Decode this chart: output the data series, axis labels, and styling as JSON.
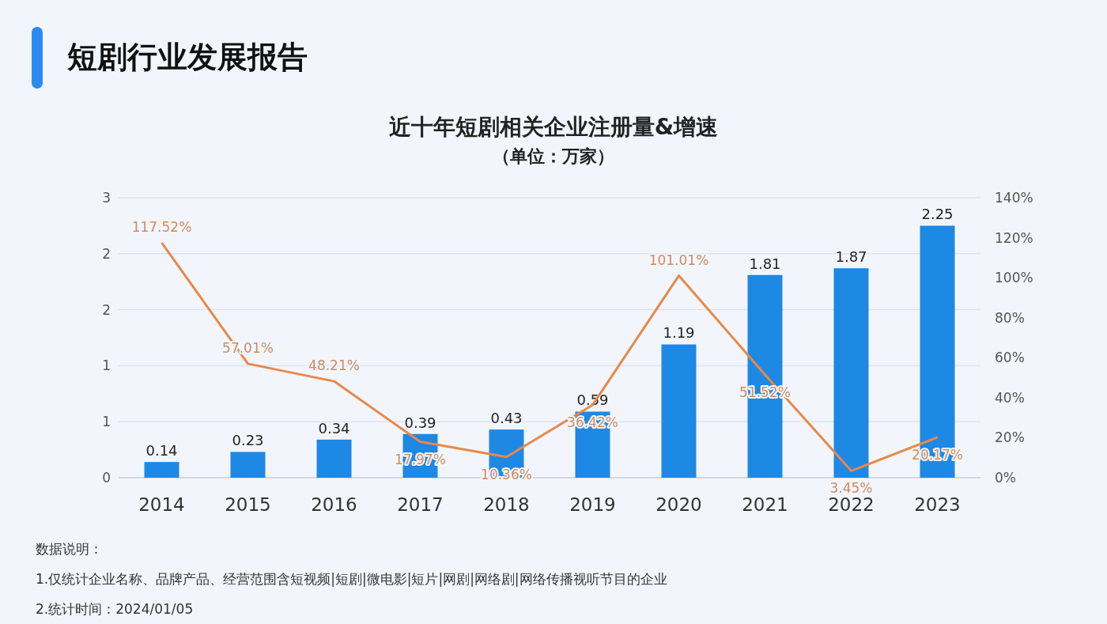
{
  "chart_data": {
    "type": "bar",
    "title": "近十年短剧相关企业注册量&增速",
    "subtitle": "（单位：万家）",
    "annotations": [
      "短剧行业发展报告",
      "数据说明：",
      "1.仅统计企业名称、品牌产品、经营范围含短视频|短剧|微电影|短片|网剧|网络剧|网络传播视听节目的企业",
      "2.统计时间：2024/01/05"
    ],
    "categories": [
      "2014",
      "2015",
      "2016",
      "2017",
      "2018",
      "2019",
      "2020",
      "2021",
      "2022",
      "2023"
    ],
    "series": [
      {
        "color": "#1e88e5",
        "values": [
          0.14,
          0.23,
          0.34,
          0.39,
          0.43,
          0.59,
          1.19,
          1.81,
          1.87,
          2.25
        ],
        "value_labels": [
          "0.14",
          "0.23",
          "0.34",
          "0.39",
          "0.43",
          "0.59",
          "1.19",
          "1.81",
          "1.87",
          "2.25"
        ]
      },
      {
        "type": "line",
        "axis": "y2",
        "color": "#e8884a",
        "values": [
          117.52,
          57.01,
          48.21,
          17.97,
          10.36,
          36.42,
          101.01,
          51.52,
          3.45,
          20.17
        ],
        "value_labels": [
          "117.52%",
          "57.01%",
          "48.21%",
          "17.97%",
          "10.36%",
          "36.42%",
          "101.01%",
          "51.52%",
          "3.45%",
          "20.17%"
        ]
      }
    ],
    "ylim": [
      0,
      2.5
    ],
    "yticks": [
      0,
      {
        "value": 0.5,
        "label": "1"
      },
      1,
      {
        "value": 1.5,
        "label": "2"
      },
      2,
      {
        "value": 2.5,
        "label": "3"
      }
    ],
    "y2lim": [
      0,
      140
    ],
    "y2ticks": [
      {
        "value": 0,
        "label": "0%"
      },
      {
        "value": 20,
        "label": "20%"
      },
      {
        "value": 40,
        "label": "40%"
      },
      {
        "value": 60,
        "label": "60%"
      },
      {
        "value": 80,
        "label": "80%"
      },
      {
        "value": 100,
        "label": "100%"
      },
      {
        "value": 120,
        "label": "120%"
      },
      {
        "value": 140,
        "label": "140%"
      }
    ],
    "grid": "y",
    "marker": "none"
  }
}
